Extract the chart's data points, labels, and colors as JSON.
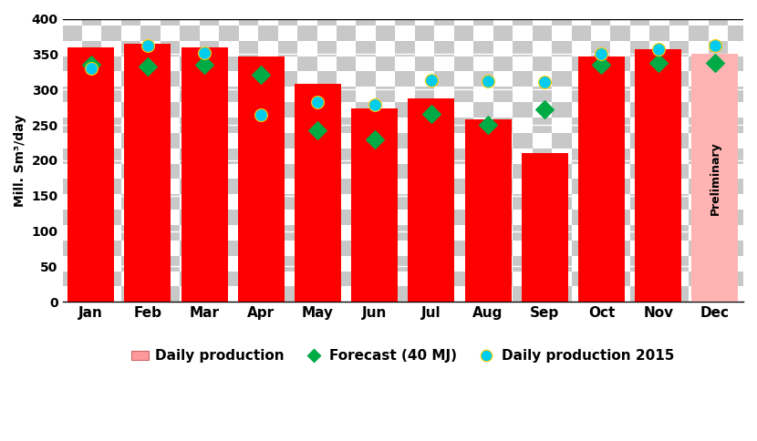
{
  "months": [
    "Jan",
    "Feb",
    "Mar",
    "Apr",
    "May",
    "Jun",
    "Jul",
    "Aug",
    "Sep",
    "Oct",
    "Nov",
    "Dec"
  ],
  "bar_values": [
    360,
    365,
    360,
    347,
    308,
    273,
    288,
    258,
    210,
    346,
    357,
    350
  ],
  "bar_colors": [
    "#ff0000",
    "#ff0000",
    "#ff0000",
    "#ff0000",
    "#ff0000",
    "#ff0000",
    "#ff0000",
    "#ff0000",
    "#ff0000",
    "#ff0000",
    "#ff0000",
    "#ffb3b3"
  ],
  "forecast_values": [
    335,
    333,
    335,
    321,
    242,
    230,
    265,
    250,
    272,
    335,
    338,
    338
  ],
  "production2015_values": [
    330,
    362,
    352,
    264,
    282,
    279,
    313,
    312,
    311,
    351,
    357,
    362
  ],
  "ylabel": "Mill. Sm³/day",
  "ylim": [
    0,
    400
  ],
  "yticks": [
    0,
    50,
    100,
    150,
    200,
    250,
    300,
    350,
    400
  ],
  "preliminary_label": "Preliminary",
  "legend_bar_color": "#ff9999",
  "legend_forecast_color": "#00aa44",
  "legend_prod2015_color": "#00ccee",
  "bar_edge_color": "#cc0000",
  "checker_light": "#ffffff",
  "checker_dark": "#c8c8c8",
  "checker_cell_size": 20,
  "bar_width": 0.82,
  "preliminary_text_color": "#000000"
}
